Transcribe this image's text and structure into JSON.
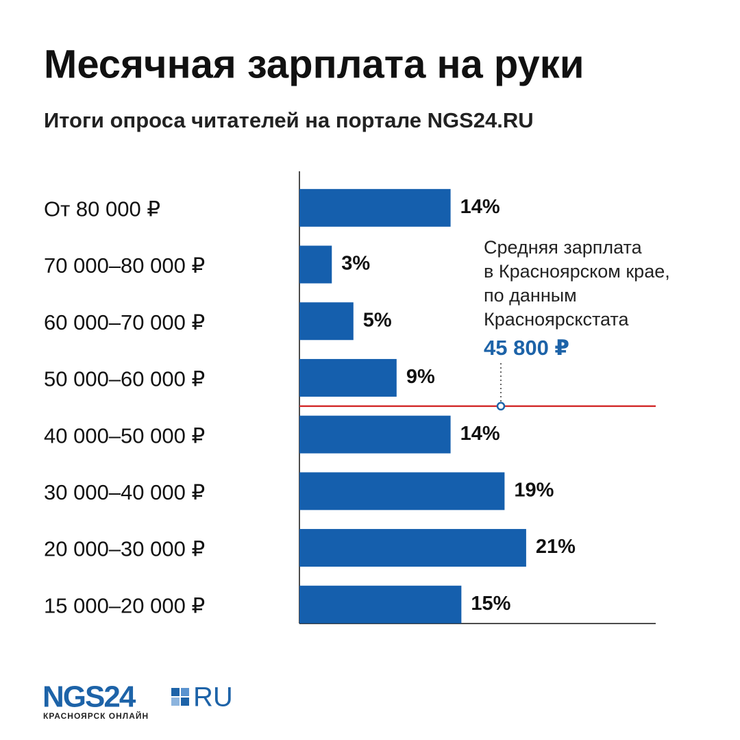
{
  "chart_data": {
    "type": "hbar",
    "title": "Месячная зарплата на руки",
    "subtitle": "Итоги опроса читателей на портале NGS24.RU",
    "categories": [
      "От 80 000 ₽",
      "70 000–80 000 ₽",
      "60 000–70 000 ₽",
      "50 000–60 000 ₽",
      "40 000–50 000 ₽",
      "30 000–40 000 ₽",
      "20 000–30 000 ₽",
      "15 000–20 000 ₽"
    ],
    "values": [
      14,
      3,
      5,
      9,
      14,
      19,
      21,
      15
    ],
    "value_labels": [
      "14%",
      "3%",
      "5%",
      "9%",
      "14%",
      "19%",
      "21%",
      "15%"
    ],
    "color": "#155fad",
    "xlim": [
      0,
      33
    ],
    "annotation": {
      "lines": [
        "Средняя зарплата",
        "в Красноярском крае,",
        "по данным",
        "Красноярскстата"
      ],
      "value": "45 800 ₽",
      "color": "#1d63a8",
      "line_color": "#d32f2f"
    }
  },
  "logo": {
    "brand": "NGS24",
    "domain": "RU",
    "tagline": "КРАСНОЯРСК ОНЛАЙН"
  }
}
